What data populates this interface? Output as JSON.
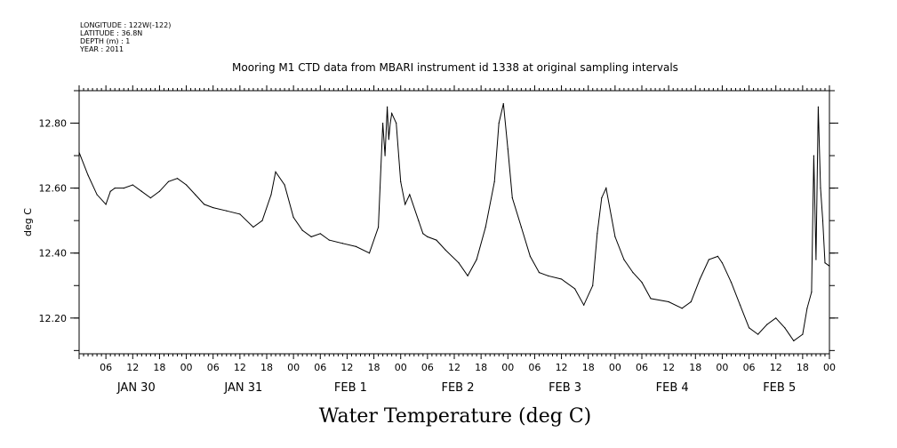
{
  "header": {
    "meta_lines": [
      "LONGITUDE : 122W(-122)",
      "LATITUDE : 36.8N",
      "DEPTH (m) : 1",
      "YEAR : 2011"
    ]
  },
  "chart_data": {
    "type": "line",
    "title": "Mooring M1 CTD data from MBARI instrument id 1338 at original sampling intervals",
    "xlabel": "Water Temperature (deg C)",
    "ylabel": "deg C",
    "ylim": [
      12.09,
      12.9
    ],
    "yticks": [
      12.2,
      12.4,
      12.6,
      12.8
    ],
    "ytick_labels": [
      "12.20",
      "12.40",
      "12.60",
      "12.80"
    ],
    "xlim": [
      "2011-01-30T00:00",
      "2011-02-06T00:00"
    ],
    "hour_ticks": [
      "06",
      "12",
      "18",
      "00",
      "06",
      "12",
      "18",
      "00",
      "06",
      "12",
      "18",
      "00",
      "06",
      "12",
      "18",
      "00",
      "06",
      "12",
      "18",
      "00",
      "06",
      "12",
      "18",
      "00",
      "06",
      "12",
      "18",
      "00"
    ],
    "day_labels": [
      "JAN 30",
      "JAN 31",
      "FEB  1",
      "FEB  2",
      "FEB  3",
      "FEB  4",
      "FEB  5"
    ],
    "grid": false,
    "series": [
      {
        "x": [
          "2011-01-30T00:00",
          "2011-01-30T02:00",
          "2011-01-30T04:00",
          "2011-01-30T06:00",
          "2011-01-30T07:00",
          "2011-01-30T08:00",
          "2011-01-30T10:00",
          "2011-01-30T12:00",
          "2011-01-30T14:00",
          "2011-01-30T16:00",
          "2011-01-30T18:00",
          "2011-01-30T20:00",
          "2011-01-30T22:00",
          "2011-01-31T00:00",
          "2011-01-31T02:00",
          "2011-01-31T04:00",
          "2011-01-31T06:00",
          "2011-01-31T09:00",
          "2011-01-31T12:00",
          "2011-01-31T15:00",
          "2011-01-31T17:00",
          "2011-01-31T19:00",
          "2011-01-31T20:00",
          "2011-01-31T22:00",
          "2011-02-01T00:00",
          "2011-02-01T02:00",
          "2011-02-01T04:00",
          "2011-02-01T06:00",
          "2011-02-01T08:00",
          "2011-02-01T11:00",
          "2011-02-01T14:00",
          "2011-02-01T17:00",
          "2011-02-01T19:00",
          "2011-02-01T20:00",
          "2011-02-01T20:30",
          "2011-02-01T21:00",
          "2011-02-01T21:20",
          "2011-02-01T21:40",
          "2011-02-01T22:00",
          "2011-02-01T23:00",
          "2011-02-02T00:00",
          "2011-02-02T01:00",
          "2011-02-02T02:00",
          "2011-02-02T04:00",
          "2011-02-02T05:00",
          "2011-02-02T06:00",
          "2011-02-02T08:00",
          "2011-02-02T10:00",
          "2011-02-02T13:00",
          "2011-02-02T15:00",
          "2011-02-02T17:00",
          "2011-02-02T19:00",
          "2011-02-02T21:00",
          "2011-02-02T22:00",
          "2011-02-02T23:00",
          "2011-02-03T00:00",
          "2011-02-03T01:00",
          "2011-02-03T03:00",
          "2011-02-03T05:00",
          "2011-02-03T07:00",
          "2011-02-03T09:00",
          "2011-02-03T12:00",
          "2011-02-03T15:00",
          "2011-02-03T17:00",
          "2011-02-03T19:00",
          "2011-02-03T20:00",
          "2011-02-03T21:00",
          "2011-02-03T22:00",
          "2011-02-04T00:00",
          "2011-02-04T02:00",
          "2011-02-04T04:00",
          "2011-02-04T06:00",
          "2011-02-04T08:00",
          "2011-02-04T12:00",
          "2011-02-04T15:00",
          "2011-02-04T17:00",
          "2011-02-04T19:00",
          "2011-02-04T21:00",
          "2011-02-04T23:00",
          "2011-02-05T00:00",
          "2011-02-05T02:00",
          "2011-02-05T04:00",
          "2011-02-05T06:00",
          "2011-02-05T08:00",
          "2011-02-05T10:00",
          "2011-02-05T12:00",
          "2011-02-05T14:00",
          "2011-02-05T16:00",
          "2011-02-05T18:00",
          "2011-02-05T19:00",
          "2011-02-05T20:00",
          "2011-02-05T20:30",
          "2011-02-05T21:00",
          "2011-02-05T21:30",
          "2011-02-05T22:00",
          "2011-02-05T22:30",
          "2011-02-05T23:00",
          "2011-02-06T00:00"
        ],
        "values": [
          12.71,
          12.64,
          12.58,
          12.55,
          12.59,
          12.6,
          12.6,
          12.61,
          12.59,
          12.57,
          12.59,
          12.62,
          12.63,
          12.61,
          12.58,
          12.55,
          12.54,
          12.53,
          12.52,
          12.48,
          12.5,
          12.58,
          12.65,
          12.61,
          12.51,
          12.47,
          12.45,
          12.46,
          12.44,
          12.43,
          12.42,
          12.4,
          12.48,
          12.8,
          12.7,
          12.85,
          12.75,
          12.8,
          12.83,
          12.8,
          12.62,
          12.55,
          12.58,
          12.5,
          12.46,
          12.45,
          12.44,
          12.41,
          12.37,
          12.33,
          12.38,
          12.48,
          12.62,
          12.8,
          12.86,
          12.72,
          12.57,
          12.48,
          12.39,
          12.34,
          12.33,
          12.32,
          12.29,
          12.24,
          12.3,
          12.46,
          12.57,
          12.6,
          12.45,
          12.38,
          12.34,
          12.31,
          12.26,
          12.25,
          12.23,
          12.25,
          12.32,
          12.38,
          12.39,
          12.37,
          12.31,
          12.24,
          12.17,
          12.15,
          12.18,
          12.2,
          12.17,
          12.13,
          12.15,
          12.23,
          12.28,
          12.7,
          12.38,
          12.85,
          12.6,
          12.5,
          12.37,
          12.36
        ]
      }
    ]
  }
}
